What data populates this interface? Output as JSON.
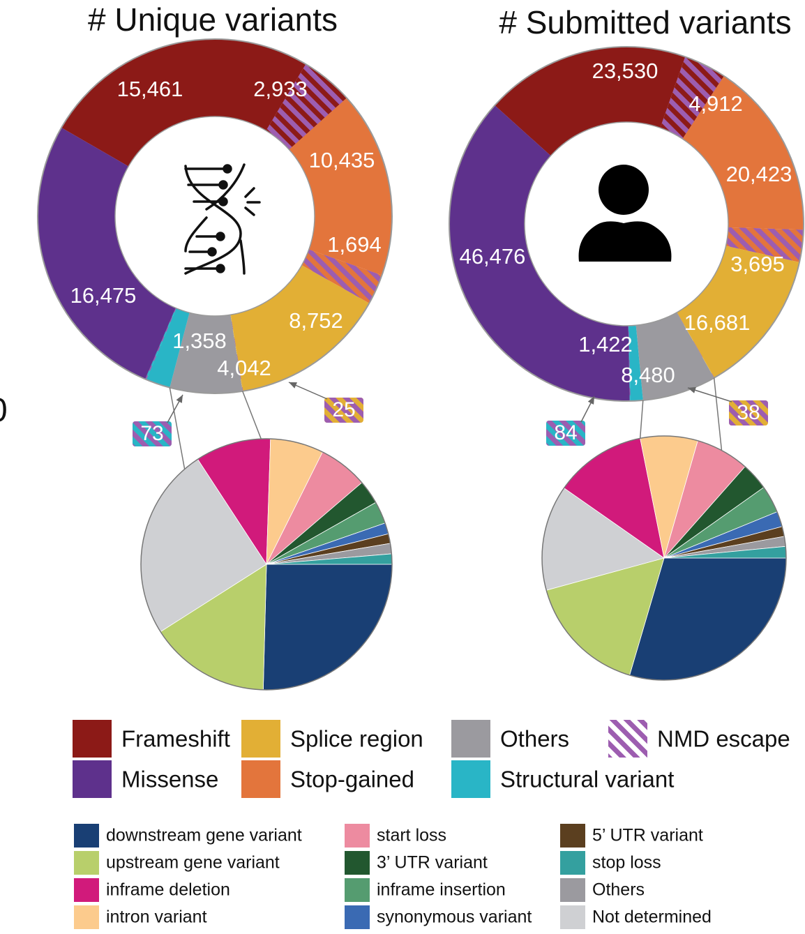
{
  "colors": {
    "frameshift": "#8c1a17",
    "missense": "#5e318c",
    "splice_region": "#e2af35",
    "stop_gained": "#e3753c",
    "others": "#9b9a9f",
    "structural_variant": "#29b5c6",
    "nmd_stripe": "#9d5db0",
    "sub": {
      "downstream": "#193f74",
      "upstream": "#b8cf6b",
      "inframe_deletion": "#d11a7b",
      "intron": "#fccb8d",
      "start_loss": "#ed8ba0",
      "utr3": "#22572f",
      "inframe_insertion": "#559c70",
      "synonymous": "#3a6ab3",
      "utr5": "#5b3f1f",
      "stop_loss": "#34a09f",
      "others": "#9b9a9f",
      "not_determined": "#cfd0d3"
    }
  },
  "icons": {
    "left": "dna-break-icon",
    "right": "person-icon"
  },
  "edge_label": "0",
  "chart_data": [
    {
      "type": "pie",
      "title": "# Unique variants",
      "donut": {
        "slices": [
          {
            "key": "frameshift",
            "value": 15461,
            "label": "15,461"
          },
          {
            "key": "frameshift_nmd",
            "value": 2933,
            "label": "2,933",
            "base": "frameshift",
            "nmd": true
          },
          {
            "key": "stop_gained",
            "value": 10435,
            "label": "10,435"
          },
          {
            "key": "stop_gained_nmd",
            "value": 1694,
            "label": "1,694",
            "base": "stop_gained",
            "nmd": true
          },
          {
            "key": "splice_region",
            "value": 8752,
            "label": "8,752"
          },
          {
            "key": "splice_region_nmd",
            "value": 25,
            "label": "",
            "base": "splice_region",
            "nmd": true
          },
          {
            "key": "others",
            "value": 4042,
            "label": "4,042"
          },
          {
            "key": "structural_variant",
            "value": 1358,
            "label": "1,358"
          },
          {
            "key": "structural_variant_nmd",
            "value": 73,
            "label": "",
            "base": "structural_variant",
            "nmd": true
          },
          {
            "key": "missense",
            "value": 16475,
            "label": "16,475"
          }
        ],
        "callouts": [
          {
            "slice": "structural_variant_nmd",
            "text": "73",
            "base": "structural_variant"
          },
          {
            "slice": "splice_region_nmd",
            "text": "25",
            "base": "splice_region"
          }
        ]
      },
      "breakdown": {
        "of": "others",
        "slices": [
          {
            "key": "downstream",
            "value": 24.8
          },
          {
            "key": "upstream",
            "value": 15.2
          },
          {
            "key": "not_determined",
            "value": 24.2
          },
          {
            "key": "inframe_deletion",
            "value": 9.5
          },
          {
            "key": "intron",
            "value": 6.7
          },
          {
            "key": "start_loss",
            "value": 6.2
          },
          {
            "key": "utr3",
            "value": 3.0
          },
          {
            "key": "inframe_insertion",
            "value": 2.8
          },
          {
            "key": "synonymous",
            "value": 1.4
          },
          {
            "key": "utr5",
            "value": 1.2
          },
          {
            "key": "others",
            "value": 1.3
          },
          {
            "key": "stop_loss",
            "value": 1.3
          }
        ]
      }
    },
    {
      "type": "pie",
      "title": "# Submitted variants",
      "donut": {
        "slices": [
          {
            "key": "frameshift",
            "value": 23530,
            "label": "23,530"
          },
          {
            "key": "frameshift_nmd",
            "value": 4912,
            "label": "4,912",
            "base": "frameshift",
            "nmd": true
          },
          {
            "key": "stop_gained",
            "value": 20423,
            "label": "20,423"
          },
          {
            "key": "stop_gained_nmd",
            "value": 3695,
            "label": "3,695",
            "base": "stop_gained",
            "nmd": true
          },
          {
            "key": "splice_region",
            "value": 16681,
            "label": "16,681"
          },
          {
            "key": "splice_region_nmd",
            "value": 38,
            "label": "",
            "base": "splice_region",
            "nmd": true
          },
          {
            "key": "others",
            "value": 8480,
            "label": "8,480"
          },
          {
            "key": "structural_variant",
            "value": 1422,
            "label": "1,422"
          },
          {
            "key": "structural_variant_nmd",
            "value": 84,
            "label": "",
            "base": "structural_variant",
            "nmd": true
          },
          {
            "key": "missense",
            "value": 46476,
            "label": "46,476"
          }
        ],
        "callouts": [
          {
            "slice": "structural_variant_nmd",
            "text": "84",
            "base": "structural_variant"
          },
          {
            "slice": "splice_region_nmd",
            "text": "38",
            "base": "splice_region"
          }
        ]
      },
      "breakdown": {
        "of": "others",
        "slices": [
          {
            "key": "downstream",
            "value": 29.2
          },
          {
            "key": "upstream",
            "value": 16.0
          },
          {
            "key": "not_determined",
            "value": 13.8
          },
          {
            "key": "inframe_deletion",
            "value": 12.0
          },
          {
            "key": "intron",
            "value": 7.5
          },
          {
            "key": "start_loss",
            "value": 7.0
          },
          {
            "key": "utr3",
            "value": 3.6
          },
          {
            "key": "inframe_insertion",
            "value": 3.6
          },
          {
            "key": "synonymous",
            "value": 2.0
          },
          {
            "key": "utr5",
            "value": 1.3
          },
          {
            "key": "others",
            "value": 1.3
          },
          {
            "key": "stop_loss",
            "value": 1.5
          }
        ]
      }
    }
  ],
  "legend_main": [
    {
      "key": "frameshift",
      "label": "Frameshift"
    },
    {
      "key": "missense",
      "label": "Missense"
    },
    {
      "key": "splice_region",
      "label": "Splice region"
    },
    {
      "key": "stop_gained",
      "label": "Stop-gained"
    },
    {
      "key": "others",
      "label": "Others"
    },
    {
      "key": "structural_variant",
      "label": "Structural variant"
    },
    {
      "key": "nmd",
      "label": "NMD escape"
    }
  ],
  "legend_sub": [
    {
      "key": "downstream",
      "label": "downstream gene variant"
    },
    {
      "key": "upstream",
      "label": "upstream gene variant"
    },
    {
      "key": "inframe_deletion",
      "label": "inframe deletion"
    },
    {
      "key": "intron",
      "label": "intron variant"
    },
    {
      "key": "start_loss",
      "label": "start loss"
    },
    {
      "key": "utr3",
      "label": "3’ UTR variant"
    },
    {
      "key": "inframe_insertion",
      "label": "inframe insertion"
    },
    {
      "key": "synonymous",
      "label": "synonymous variant"
    },
    {
      "key": "utr5",
      "label": "5’ UTR variant"
    },
    {
      "key": "stop_loss",
      "label": "stop loss"
    },
    {
      "key": "others",
      "label": "Others"
    },
    {
      "key": "not_determined",
      "label": "Not determined"
    }
  ]
}
